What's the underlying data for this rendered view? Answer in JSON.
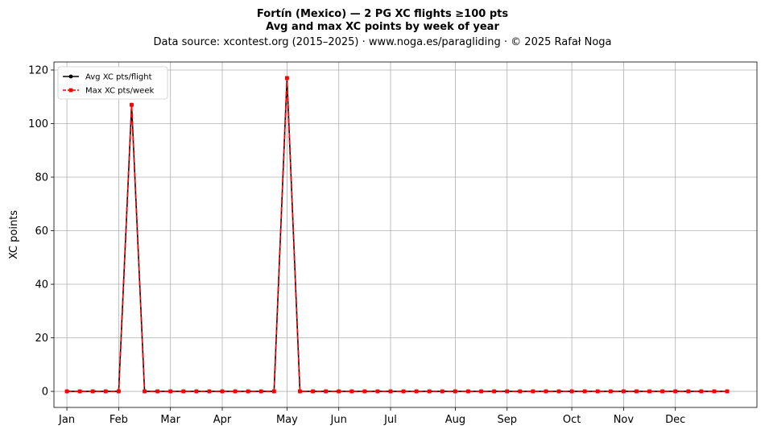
{
  "chart_data": {
    "type": "line",
    "title": "Fortín (Mexico)  —  2 PG XC flights ≥100 pts",
    "subtitle": "Avg and max XC points by week of year",
    "source": "Data source: xcontest.org (2015–2025)  ·  www.noga.es/paragliding  ·  © 2025 Rafał Noga",
    "xlabel": "",
    "ylabel": "XC points",
    "xlim": [
      0,
      54.3
    ],
    "ylim": [
      -6,
      123
    ],
    "yticks": [
      0,
      20,
      40,
      60,
      80,
      100,
      120
    ],
    "x_ticks": [
      {
        "week": 1,
        "label": "Jan"
      },
      {
        "week": 5,
        "label": "Feb"
      },
      {
        "week": 9,
        "label": "Mar"
      },
      {
        "week": 13,
        "label": "Apr"
      },
      {
        "week": 18,
        "label": "May"
      },
      {
        "week": 22,
        "label": "Jun"
      },
      {
        "week": 26,
        "label": "Jul"
      },
      {
        "week": 31,
        "label": "Aug"
      },
      {
        "week": 35,
        "label": "Sep"
      },
      {
        "week": 40,
        "label": "Oct"
      },
      {
        "week": 44,
        "label": "Nov"
      },
      {
        "week": 48,
        "label": "Dec"
      }
    ],
    "x": [
      1,
      2,
      3,
      4,
      5,
      6,
      7,
      8,
      9,
      10,
      11,
      12,
      13,
      14,
      15,
      16,
      17,
      18,
      19,
      20,
      21,
      22,
      23,
      24,
      25,
      26,
      27,
      28,
      29,
      30,
      31,
      32,
      33,
      34,
      35,
      36,
      37,
      38,
      39,
      40,
      41,
      42,
      43,
      44,
      45,
      46,
      47,
      48,
      49,
      50,
      51,
      52
    ],
    "series": [
      {
        "name": "Avg XC pts/flight",
        "color": "#000000",
        "style": "solid",
        "marker": "circle",
        "values": [
          0,
          0,
          0,
          0,
          0,
          107,
          0,
          0,
          0,
          0,
          0,
          0,
          0,
          0,
          0,
          0,
          0,
          117,
          0,
          0,
          0,
          0,
          0,
          0,
          0,
          0,
          0,
          0,
          0,
          0,
          0,
          0,
          0,
          0,
          0,
          0,
          0,
          0,
          0,
          0,
          0,
          0,
          0,
          0,
          0,
          0,
          0,
          0,
          0,
          0,
          0,
          0
        ]
      },
      {
        "name": "Max XC pts/week",
        "color": "#ff0000",
        "style": "dashed",
        "marker": "square",
        "values": [
          0,
          0,
          0,
          0,
          0,
          107,
          0,
          0,
          0,
          0,
          0,
          0,
          0,
          0,
          0,
          0,
          0,
          117,
          0,
          0,
          0,
          0,
          0,
          0,
          0,
          0,
          0,
          0,
          0,
          0,
          0,
          0,
          0,
          0,
          0,
          0,
          0,
          0,
          0,
          0,
          0,
          0,
          0,
          0,
          0,
          0,
          0,
          0,
          0,
          0,
          0,
          0
        ]
      }
    ],
    "grid": true,
    "legend_position": "top-left"
  }
}
